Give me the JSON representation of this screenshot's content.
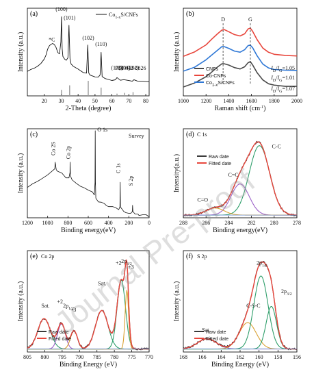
{
  "watermark": "Journal Pre-proof",
  "chart_data": [
    {
      "type": "line",
      "panel": "(a)",
      "xlabel": "2-Theta (degree)",
      "ylabel": "Intensity (a.u.)",
      "xlim": [
        10,
        82
      ],
      "ylim": [
        0,
        100
      ],
      "xticks": [
        20,
        30,
        40,
        50,
        60,
        70,
        80
      ],
      "series": [
        {
          "name": "Co1-xS/CNFs",
          "color": "#111111",
          "x": [
            10,
            12,
            14,
            16,
            18,
            20,
            21,
            22,
            23,
            24,
            25,
            26,
            27,
            28,
            29,
            29.8,
            30.2,
            30.6,
            31,
            32,
            33,
            34,
            34.6,
            35.2,
            35.8,
            37,
            40,
            43,
            45,
            45.7,
            46.3,
            47,
            50,
            52,
            53,
            53.6,
            54.2,
            56,
            60,
            62,
            63,
            65,
            67,
            70,
            72,
            73,
            75,
            78,
            82
          ],
          "y": [
            28,
            30,
            32,
            34,
            37,
            42,
            47,
            53,
            57,
            59,
            60,
            58,
            55,
            50,
            48,
            62,
            90,
            54,
            45,
            42,
            41,
            44,
            80,
            42,
            37,
            34,
            30,
            27,
            26,
            58,
            26,
            24,
            22,
            21,
            24,
            50,
            22,
            20,
            18,
            18,
            21,
            18,
            19,
            17,
            17,
            18,
            17,
            17,
            16
          ]
        }
      ],
      "labels": [
        {
          "text": "*C",
          "x": 24.5
        },
        {
          "text": "(100)",
          "x": 30.2
        },
        {
          "text": "(101)",
          "x": 35
        },
        {
          "text": "(102)",
          "x": 46
        },
        {
          "text": "(110)",
          "x": 53.6
        },
        {
          "text": "(103)",
          "x": 63
        },
        {
          "text": "(201)",
          "x": 67.5
        },
        {
          "text": "(202)",
          "x": 72.5
        }
      ],
      "reference": {
        "name": "PDF#42-0826",
        "positions": [
          30.2,
          35,
          46,
          53.6,
          63,
          67.5,
          72.5
        ],
        "heights": [
          40,
          70,
          100,
          55,
          15,
          20,
          25
        ]
      }
    },
    {
      "type": "line",
      "panel": "(b)",
      "xlabel": "Raman shift (cm-1)",
      "ylabel": "Intensity (a.u.)",
      "xlim": [
        1000,
        2000
      ],
      "ylim": [
        0,
        100
      ],
      "xticks": [
        1000,
        1200,
        1400,
        1600,
        1800,
        2000
      ],
      "peaks": [
        {
          "text": "D",
          "x": 1350
        },
        {
          "text": "G",
          "x": 1590
        }
      ],
      "series": [
        {
          "name": "CNFs",
          "color": "#4a4a4a",
          "ratio": "ID/IG=1.07",
          "offset": 10
        },
        {
          "name": "Co-CNFs",
          "color": "#e8463c",
          "ratio": "ID/IG=1.05",
          "offset": 45
        },
        {
          "name": "Co1-xS/CNFs",
          "color": "#2f78d6",
          "ratio": "ID/IG=1.01",
          "offset": 28
        }
      ],
      "profile_x": [
        1000,
        1100,
        1200,
        1250,
        1300,
        1340,
        1360,
        1400,
        1450,
        1500,
        1540,
        1570,
        1590,
        1610,
        1650,
        1700,
        1750,
        1800,
        1900,
        2000
      ],
      "profile_y": [
        0,
        8,
        22,
        32,
        42,
        48,
        49,
        46,
        40,
        38,
        42,
        50,
        52,
        46,
        30,
        15,
        7,
        4,
        2,
        1
      ]
    },
    {
      "type": "line",
      "panel": "(c)",
      "xlabel": "Binding energy(eV)",
      "ylabel": "Intensity (a.u.)",
      "xlim": [
        1200,
        0
      ],
      "ylim": [
        0,
        100
      ],
      "xticks": [
        1200,
        1000,
        800,
        600,
        400,
        200,
        0
      ],
      "title": "Survey",
      "labels": [
        {
          "text": "O 1s",
          "x": 531
        },
        {
          "text": "Co 2S",
          "x": 926
        },
        {
          "text": "Co 2p",
          "x": 779
        },
        {
          "text": "C 1s",
          "x": 285
        },
        {
          "text": "S 2p",
          "x": 163
        }
      ],
      "series": [
        {
          "name": "Survey",
          "color": "#111111",
          "x": [
            1200,
            1150,
            1100,
            1050,
            1000,
            960,
            930,
            926,
            915,
            900,
            860,
            820,
            790,
            780,
            779,
            775,
            760,
            720,
            680,
            640,
            600,
            560,
            540,
            533,
            531,
            529,
            525,
            500,
            470,
            440,
            420,
            400,
            360,
            330,
            300,
            288,
            285,
            283,
            270,
            250,
            230,
            200,
            180,
            165,
            163,
            160,
            140,
            110,
            100,
            60,
            30,
            0
          ],
          "y": [
            35,
            37,
            40,
            44,
            48,
            52,
            55,
            62,
            54,
            53,
            50,
            46,
            44,
            50,
            62,
            48,
            42,
            38,
            36,
            33,
            30,
            28,
            26,
            40,
            98,
            40,
            22,
            19,
            17,
            15,
            14,
            13,
            12,
            11,
            10,
            12,
            40,
            12,
            9,
            8,
            7,
            6,
            6,
            6,
            14,
            6,
            4,
            4,
            2,
            3,
            3,
            2
          ]
        }
      ]
    },
    {
      "type": "line",
      "panel": "(d)",
      "title": "C 1s",
      "xlabel": "Binding energy(eV)",
      "ylabel": "Intensity(a.u.)",
      "xlim": [
        288,
        278
      ],
      "ylim": [
        0,
        100
      ],
      "xticks": [
        288,
        286,
        284,
        282,
        280,
        278
      ],
      "legend": [
        "Raw date",
        "Fitted date"
      ],
      "components": [
        {
          "name": "C-C",
          "center": 281.3,
          "height": 78,
          "width": 0.9,
          "color": "#2e9e6a"
        },
        {
          "name": "C=C",
          "center": 283.0,
          "height": 35,
          "width": 0.8,
          "color": "#9a5fc7"
        },
        {
          "name": "C=O",
          "center": 285.2,
          "height": 8,
          "width": 0.8,
          "color": "#d9a032"
        }
      ],
      "baseline": 3,
      "raw_color": "#3a3a3a",
      "fit_color": "#e8463c"
    },
    {
      "type": "line",
      "panel": "(e)",
      "title": "Co 2p",
      "xlabel": "Binding Energy (eV)",
      "ylabel": "Intensity (a.u.)",
      "xlim": [
        805,
        770
      ],
      "ylim": [
        0,
        100
      ],
      "xticks": [
        805,
        800,
        795,
        790,
        785,
        780,
        775,
        770
      ],
      "legend": [
        "Raw date",
        "Fitted date"
      ],
      "labels": [
        {
          "text": "Sat.",
          "x": 799.8
        },
        {
          "text": "+2",
          "x": 795.6
        },
        {
          "text": "2p1/2",
          "x": 793.2
        },
        {
          "text": "+3",
          "x": 791.8
        },
        {
          "text": "Sat.",
          "x": 783.5
        },
        {
          "text": "+2",
          "x": 778.8
        },
        {
          "text": "2p3/2",
          "x": 776.5
        },
        {
          "text": "+3",
          "x": 775.2
        }
      ],
      "components": [
        {
          "name": "Sat.",
          "center": 800.2,
          "height": 30,
          "width": 1.8,
          "color": "#2e9e6a"
        },
        {
          "name": "+2",
          "center": 795.2,
          "height": 25,
          "width": 1.1,
          "color": "#9a5fc7"
        },
        {
          "name": "+3",
          "center": 791.6,
          "height": 18,
          "width": 1.0,
          "color": "#d9a032"
        },
        {
          "name": "Sat.",
          "center": 783.6,
          "height": 38,
          "width": 1.8,
          "color": "#2e9e6a"
        },
        {
          "name": "+2",
          "center": 778.0,
          "height": 68,
          "width": 1.2,
          "color": "#2e9e6a"
        },
        {
          "name": "+3",
          "center": 776.4,
          "height": 58,
          "width": 0.5,
          "color": "#d9a032"
        }
      ],
      "baseline": 3,
      "raw_color": "#3a3a3a",
      "fit_color": "#e8463c"
    },
    {
      "type": "line",
      "panel": "(f)",
      "title": "S 2p",
      "xlabel": "Binding Energy (eV)",
      "ylabel": "Intensity (a.u.)",
      "xlim": [
        168,
        156
      ],
      "ylim": [
        0,
        100
      ],
      "xticks": [
        168,
        166,
        164,
        162,
        160,
        158,
        156
      ],
      "legend": [
        "Raw date",
        "Fitted date"
      ],
      "labels": [
        {
          "text": "Sat.",
          "x": 165.6
        },
        {
          "text": "C-S-C",
          "x": 161.5
        },
        {
          "text": "2p1/2",
          "x": 159.7
        },
        {
          "text": "2p3/2",
          "x": 158.5
        }
      ],
      "components": [
        {
          "name": "Sat.",
          "center": 165.5,
          "height": 10,
          "width": 1.0,
          "color": "#9a5fc7"
        },
        {
          "name": "C-S-C",
          "center": 161.2,
          "height": 26,
          "width": 0.9,
          "color": "#d9a032"
        },
        {
          "name": "2p1/2",
          "center": 159.8,
          "height": 72,
          "width": 0.75,
          "color": "#2e9e6a"
        },
        {
          "name": "2p3/2",
          "center": 158.7,
          "height": 42,
          "width": 0.55,
          "color": "#2e9e6a"
        }
      ],
      "baseline": 3,
      "raw_color": "#3a3a3a",
      "fit_color": "#e8463c"
    }
  ]
}
